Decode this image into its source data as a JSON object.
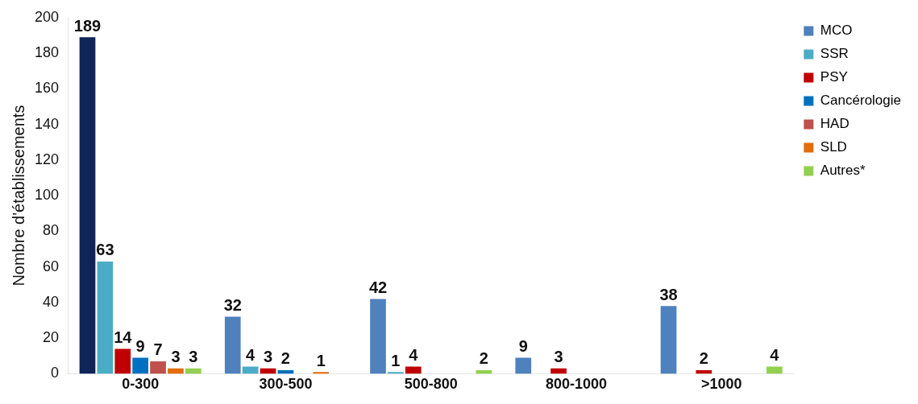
{
  "chart_data": {
    "type": "bar",
    "ylabel": "Nombre d'établissements",
    "categories": [
      "0-300",
      "300-500",
      "500-800",
      "800-1000",
      ">1000"
    ],
    "series": [
      {
        "name": "MCO",
        "color": "#4f81bd",
        "colors": [
          "#0f2457",
          "#4f81bd",
          "#4f81bd",
          "#4f81bd",
          "#4f81bd"
        ],
        "values": [
          189,
          32,
          42,
          9,
          38
        ],
        "value_labels": [
          "189",
          "32",
          "42",
          "9",
          "38"
        ]
      },
      {
        "name": "SSR",
        "color": "#4bacc6",
        "values": [
          63,
          4,
          1,
          0,
          0
        ],
        "value_labels": [
          "63",
          "4",
          "1",
          null,
          null
        ]
      },
      {
        "name": "PSY",
        "color": "#c00000",
        "values": [
          14,
          3,
          4,
          3,
          2
        ],
        "value_labels": [
          "14",
          "3",
          "4",
          "3",
          "2"
        ]
      },
      {
        "name": "Cancérologie",
        "color": "#0070c0",
        "values": [
          9,
          2,
          0,
          0,
          0
        ],
        "value_labels": [
          "9",
          "2",
          null,
          null,
          null
        ]
      },
      {
        "name": "HAD",
        "color": "#c0504d",
        "values": [
          7,
          0,
          0,
          0,
          0
        ],
        "value_labels": [
          "7",
          null,
          null,
          null,
          null
        ]
      },
      {
        "name": "SLD",
        "color": "#e46c0a",
        "values": [
          3,
          1,
          0,
          0,
          0
        ],
        "value_labels": [
          "3",
          "1",
          null,
          null,
          null
        ]
      },
      {
        "name": "Autres*",
        "color": "#92d050",
        "values": [
          3,
          0,
          2,
          0,
          4
        ],
        "value_labels": [
          "3",
          null,
          "2",
          null,
          "4"
        ]
      }
    ],
    "ylim": [
      0,
      200
    ],
    "yticks": [
      0,
      20,
      40,
      60,
      80,
      100,
      120,
      140,
      160,
      180,
      200
    ],
    "grid": false,
    "legend": "top right"
  }
}
